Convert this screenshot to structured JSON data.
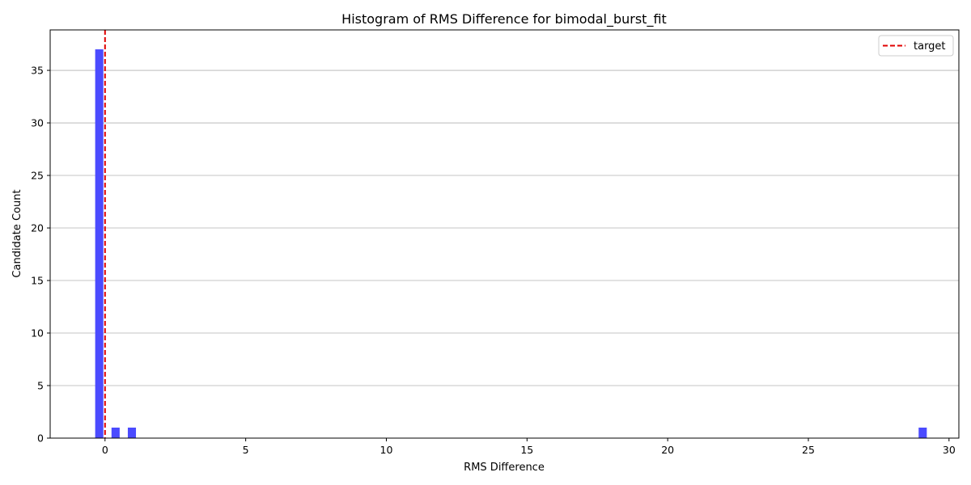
{
  "chart_data": {
    "type": "bar",
    "title": "Histogram of RMS Difference for bimodal_burst_fit",
    "xlabel": "RMS Difference",
    "ylabel": "Candidate Count",
    "xlim": [
      -1.95,
      30.35
    ],
    "ylim": [
      0,
      38.85
    ],
    "xticks": [
      0,
      5,
      10,
      15,
      20,
      25,
      30
    ],
    "yticks": [
      0,
      5,
      10,
      15,
      20,
      25,
      30,
      35
    ],
    "grid": "y",
    "bar_color": "#4b4bff",
    "bars": [
      {
        "x": -0.35,
        "width": 0.29,
        "value": 37
      },
      {
        "x": 0.23,
        "width": 0.29,
        "value": 1
      },
      {
        "x": 0.81,
        "width": 0.29,
        "value": 1
      },
      {
        "x": 28.92,
        "width": 0.29,
        "value": 1
      }
    ],
    "target_line": {
      "x": 0,
      "label": "target",
      "color": "#e00000",
      "style": "dashed"
    },
    "legend": {
      "position": "top-right",
      "entries": [
        "target"
      ]
    }
  }
}
